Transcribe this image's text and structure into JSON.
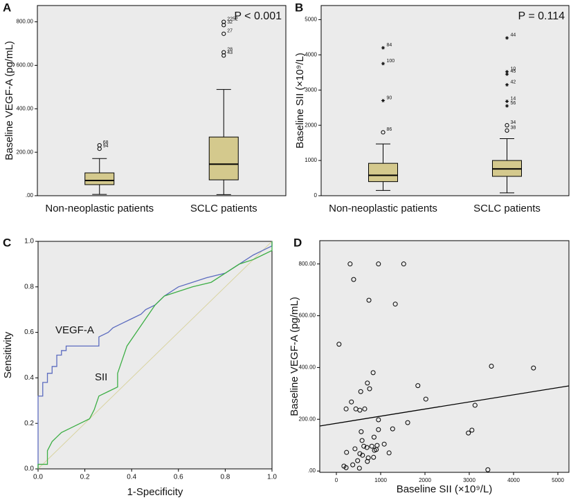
{
  "chart_data": [
    {
      "type": "box",
      "panel": "A",
      "y_label": "Baseline VEGF-A (pg/mL)",
      "annotation": "P < 0.001",
      "categories": [
        "Non-neoplastic patients",
        "SCLC patients"
      ],
      "box_color": "#d4c98d",
      "boxes": [
        {
          "min": 6,
          "q1": 51,
          "median": 70,
          "q3": 105,
          "max": 171,
          "outliers": [
            {
              "label": "68",
              "value": 232,
              "marker": "circle"
            },
            {
              "label": "94",
              "value": 216,
              "marker": "circle"
            }
          ]
        },
        {
          "min": 5,
          "q1": 73,
          "median": 145,
          "q3": 270,
          "max": 489,
          "outliers": [
            {
              "label": "2252",
              "value": 800,
              "marker": "circle"
            },
            {
              "label": "32",
              "value": 785,
              "marker": "circle"
            },
            {
              "label": "27",
              "value": 745,
              "marker": "circle"
            },
            {
              "label": "28",
              "value": 660,
              "marker": "circle"
            },
            {
              "label": "43",
              "value": 645,
              "marker": "circle"
            }
          ]
        }
      ],
      "ylim": [
        0,
        875
      ],
      "yticks": [
        {
          "value": 0,
          "label": ".00"
        },
        {
          "value": 200,
          "label": "200.00"
        },
        {
          "value": 400,
          "label": "400.00"
        },
        {
          "value": 600,
          "label": "600.00"
        },
        {
          "value": 800,
          "label": "800.00"
        }
      ]
    },
    {
      "type": "box",
      "panel": "B",
      "y_label": "Baseline SII (×10⁹/L)",
      "annotation": "P = 0.114",
      "categories": [
        "Non-neoplastic patients",
        "SCLC patients"
      ],
      "box_color": "#d4c98d",
      "boxes": [
        {
          "min": 150,
          "q1": 400,
          "median": 580,
          "q3": 920,
          "max": 1470,
          "outliers": [
            {
              "label": "86",
              "value": 1800,
              "marker": "circle"
            },
            {
              "label": "90",
              "value": 2700,
              "marker": "star"
            },
            {
              "label": "100",
              "value": 3750,
              "marker": "star"
            },
            {
              "label": "84",
              "value": 4200,
              "marker": "star"
            }
          ]
        },
        {
          "min": 80,
          "q1": 550,
          "median": 760,
          "q3": 1000,
          "max": 1620,
          "outliers": [
            {
              "label": "38",
              "value": 1850,
              "marker": "circle"
            },
            {
              "label": "34",
              "value": 2000,
              "marker": "circle"
            },
            {
              "label": "56",
              "value": 2550,
              "marker": "star"
            },
            {
              "label": "14",
              "value": 2680,
              "marker": "star"
            },
            {
              "label": "42",
              "value": 3150,
              "marker": "star"
            },
            {
              "label": "45",
              "value": 3450,
              "marker": "star"
            },
            {
              "label": "10",
              "value": 3520,
              "marker": "star"
            },
            {
              "label": "44",
              "value": 4480,
              "marker": "star"
            }
          ]
        }
      ],
      "ylim": [
        0,
        5400
      ],
      "yticks": [
        0,
        1000,
        2000,
        3000,
        4000,
        5000
      ]
    },
    {
      "type": "line",
      "panel": "C",
      "x_label": "1-Specificity",
      "y_label": "Sensitivity",
      "series": [
        {
          "name": "VEGF-A",
          "color": "#5b6bbf",
          "x": [
            0,
            0,
            0.02,
            0.02,
            0.04,
            0.04,
            0.06,
            0.06,
            0.08,
            0.08,
            0.1,
            0.1,
            0.12,
            0.12,
            0.26,
            0.26,
            0.3,
            0.32,
            0.36,
            0.4,
            0.44,
            0.46,
            0.5,
            0.54,
            0.6,
            0.66,
            0.72,
            0.8,
            0.86,
            0.92,
            0.96,
            1,
            1
          ],
          "values": [
            0,
            0.32,
            0.32,
            0.38,
            0.38,
            0.42,
            0.42,
            0.45,
            0.45,
            0.5,
            0.5,
            0.52,
            0.52,
            0.54,
            0.54,
            0.58,
            0.6,
            0.62,
            0.64,
            0.66,
            0.68,
            0.7,
            0.72,
            0.76,
            0.8,
            0.82,
            0.84,
            0.86,
            0.9,
            0.94,
            0.96,
            0.98,
            1
          ]
        },
        {
          "name": "SII",
          "color": "#3cae44",
          "x": [
            0,
            0,
            0.04,
            0.04,
            0.06,
            0.08,
            0.1,
            0.14,
            0.18,
            0.22,
            0.24,
            0.26,
            0.3,
            0.34,
            0.34,
            0.36,
            0.38,
            0.42,
            0.46,
            0.5,
            0.54,
            0.6,
            0.66,
            0.74,
            0.8,
            0.86,
            0.92,
            0.96,
            1,
            1
          ],
          "values": [
            0,
            0.02,
            0.02,
            0.08,
            0.12,
            0.14,
            0.16,
            0.18,
            0.2,
            0.22,
            0.26,
            0.32,
            0.34,
            0.36,
            0.42,
            0.48,
            0.54,
            0.6,
            0.66,
            0.72,
            0.76,
            0.78,
            0.8,
            0.82,
            0.86,
            0.9,
            0.92,
            0.94,
            0.96,
            1
          ]
        }
      ],
      "reference_line": {
        "x": [
          0,
          1
        ],
        "values": [
          0,
          1
        ],
        "color": "#d9d3a0"
      },
      "xlim": [
        0,
        1
      ],
      "ylim": [
        0,
        1
      ],
      "xticks": [
        {
          "value": 0,
          "label": "0.0"
        },
        {
          "value": 0.2,
          "label": "0.2"
        },
        {
          "value": 0.4,
          "label": "0.4"
        },
        {
          "value": 0.6,
          "label": "0.6"
        },
        {
          "value": 0.8,
          "label": "0.8"
        },
        {
          "value": 1,
          "label": "1.0"
        }
      ],
      "yticks": [
        {
          "value": 0,
          "label": "0.0"
        },
        {
          "value": 0.2,
          "label": "0.2"
        },
        {
          "value": 0.4,
          "label": "0.4"
        },
        {
          "value": 0.6,
          "label": "0.6"
        },
        {
          "value": 0.8,
          "label": "0.8"
        },
        {
          "value": 1,
          "label": "1.0"
        }
      ]
    },
    {
      "type": "scatter",
      "panel": "D",
      "x_label": "Baseline SII (×10⁹/L)",
      "y_label": "Baseline VEGF-A (pg/mL)",
      "x": [
        310,
        950,
        1520,
        390,
        735,
        1330,
        60,
        3500,
        4450,
        830,
        1840,
        700,
        750,
        2020,
        3130,
        550,
        340,
        220,
        440,
        530,
        640,
        950,
        1610,
        950,
        1270,
        3060,
        2980,
        560,
        580,
        850,
        920,
        1080,
        800,
        620,
        690,
        230,
        420,
        530,
        590,
        720,
        840,
        1190,
        480,
        700,
        370,
        220,
        170,
        520,
        3420,
        900,
        860
      ],
      "values": [
        800,
        800,
        800,
        740,
        660,
        645,
        490,
        405,
        398,
        380,
        330,
        340,
        318,
        278,
        254,
        307,
        267,
        240,
        240,
        235,
        240,
        198,
        187,
        160,
        163,
        158,
        147,
        152,
        118,
        131,
        99,
        104,
        96,
        96,
        91,
        72,
        86,
        67,
        61,
        51,
        53,
        70,
        40,
        37,
        24,
        13,
        19,
        11,
        5,
        83,
        80
      ],
      "trend_line": {
        "x": [
          -375,
          5250
        ],
        "values": [
          174,
          329
        ]
      },
      "xlim": [
        -375,
        5250
      ],
      "ylim": [
        -5,
        890
      ],
      "xticks": [
        0,
        1000,
        2000,
        3000,
        4000,
        5000
      ],
      "yticks": [
        {
          "value": 0,
          "label": ".00"
        },
        {
          "value": 200,
          "label": "200.00"
        },
        {
          "value": 400,
          "label": "400.00"
        },
        {
          "value": 600,
          "label": "600.00"
        },
        {
          "value": 800,
          "label": "800.00"
        }
      ]
    }
  ]
}
